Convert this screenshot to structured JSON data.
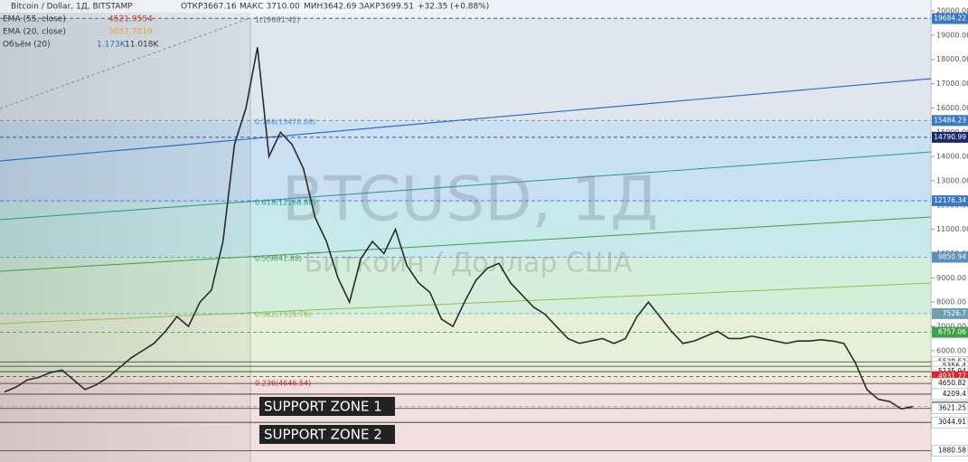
{
  "chart_data": {
    "type": "line",
    "title": "Bitcoin / Dollar, 1Д, BITSTAMP",
    "ohlc_labels": [
      "ОТКР3667.16",
      "МАКС 3710.00",
      "МИН3642.69",
      "ЗАКР3699.51",
      "+32.35 (+0.88%)"
    ],
    "indicators": [
      {
        "name": "EMA (55, close)",
        "value": "4521.9554",
        "color": "#c0392b"
      },
      {
        "name": "EMA (20, close)",
        "value": "3657.7819",
        "color": "#e8a23a"
      },
      {
        "name": "Объём (20)",
        "value": "1.173K",
        "value2": "11.018K",
        "color": "#3b6fb0"
      }
    ],
    "watermark": "BTCUSD, 1Д",
    "subtitle": "Биткоин / Доллар США",
    "fib_labels": [
      "1(19681.42)",
      "0.786(15470.08)",
      "0.618(12168.88)",
      "0.5(9841.88)",
      "0.382(7519.78)",
      "0.236(4646.54)"
    ],
    "annotations": [
      "SUPPORT ZONE 1",
      "SUPPORT ZONE 2"
    ],
    "categories": [
      null,
      null,
      null,
      null,
      null,
      null,
      null,
      null,
      null,
      null,
      null,
      null,
      null,
      null,
      null,
      null,
      null,
      null,
      null,
      null,
      null,
      null,
      null,
      null,
      null,
      null,
      null,
      null,
      null,
      null,
      null,
      null,
      null,
      null,
      null,
      null,
      null,
      null,
      null,
      null,
      null,
      null,
      null,
      null,
      null,
      null,
      null,
      null,
      null,
      null,
      null,
      null,
      null,
      null,
      null,
      null,
      null,
      null,
      null,
      null,
      null,
      null,
      null,
      null,
      null,
      null,
      null,
      null,
      null,
      null,
      null,
      null,
      null,
      null,
      null,
      null,
      null,
      null,
      null,
      null
    ],
    "series": [
      {
        "color": "#2b2b2b",
        "values": [
          4300,
          4500,
          4800,
          4900,
          5100,
          5200,
          4800,
          4400,
          4600,
          4900,
          5300,
          5700,
          6000,
          6300,
          6800,
          7400,
          7000,
          8000,
          8500,
          10500,
          14500,
          16000,
          18500,
          14000,
          15000,
          14500,
          13500,
          11500,
          10500,
          9000,
          8000,
          9800,
          10500,
          10000,
          11000,
          9500,
          8800,
          8400,
          7300,
          7000,
          8000,
          8900,
          9400,
          9600,
          8800,
          8300,
          7800,
          7500,
          7000,
          6500,
          6300,
          6400,
          6500,
          6300,
          6500,
          7400,
          8000,
          7400,
          6800,
          6300,
          6400,
          6600,
          6800,
          6500,
          6500,
          6600,
          6500,
          6400,
          6300,
          6400,
          6400,
          6450,
          6400,
          6300,
          5500,
          4400,
          4000,
          3900,
          3600,
          3699.51
        ]
      }
    ],
    "ylim": [
      1600,
      20300
    ],
    "yticks": [
      {
        "value": 6000,
        "label": "6000.00"
      },
      {
        "value": 7000,
        "label": "7000.00"
      },
      {
        "value": 8000,
        "label": "8000.00"
      },
      {
        "value": 9000,
        "label": "9000.00"
      },
      {
        "value": 10000,
        "label": "10000.00"
      },
      {
        "value": 11000,
        "label": "11000.00"
      },
      {
        "value": 12000,
        "label": "12000.00"
      },
      {
        "value": 13000,
        "label": "13000.00"
      },
      {
        "value": 14000,
        "label": "14000.00"
      },
      {
        "value": 15000,
        "label": "15000.00"
      },
      {
        "value": 16000,
        "label": "16000.00"
      },
      {
        "value": 17000,
        "label": "17000.00"
      },
      {
        "value": 18000,
        "label": "18000.00"
      },
      {
        "value": 19000,
        "label": "19000.00"
      },
      {
        "value": 20000,
        "label": "20000.00"
      }
    ],
    "price_lines": [
      {
        "value": 19684.22,
        "color": "#3a78c2"
      },
      {
        "value": 15484.23,
        "color": "#3a78c2"
      },
      {
        "value": 14790.99,
        "color": "#1b2a6b"
      },
      {
        "value": 12176.34,
        "color": "#3a78c2"
      },
      {
        "value": 9850.94,
        "color": "#5a8fb8"
      },
      {
        "value": 7526.7,
        "color": "#6aa0b0"
      },
      {
        "value": 6757.06,
        "color": "#3fa04a"
      },
      {
        "value": 5538.52,
        "color": "#ffffff"
      },
      {
        "value": 5356.4,
        "color": "#ffffff"
      },
      {
        "value": 5135.94,
        "color": "#ffffff"
      },
      {
        "value": 4931.77,
        "color": "#d9262b"
      },
      {
        "value": 4650.82,
        "color": "#ffffff"
      },
      {
        "value": 4209.4,
        "color": "#ffffff"
      },
      {
        "value": 3699.51,
        "color": "#9a9a9a"
      },
      {
        "value": 3621.25,
        "color": "#ffffff"
      },
      {
        "value": 3044.91,
        "color": "#ffffff"
      },
      {
        "value": 1880.58,
        "color": "#ffffff"
      }
    ]
  }
}
